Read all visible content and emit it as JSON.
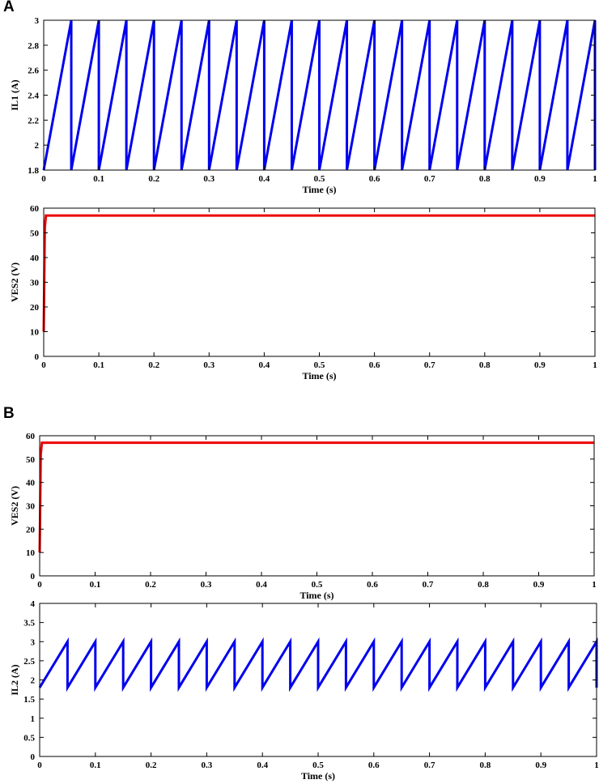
{
  "panels": {
    "a": {
      "label": "A"
    },
    "b": {
      "label": "B"
    }
  },
  "chart_data": [
    {
      "id": "A-top",
      "type": "line",
      "xlabel": "Time (s)",
      "ylabel": "IL1 (A)",
      "xlim": [
        0,
        1
      ],
      "ylim": [
        1.8,
        3
      ],
      "xticks": [
        0,
        0.1,
        0.2,
        0.3,
        0.4,
        0.5,
        0.6,
        0.7,
        0.8,
        0.9,
        1
      ],
      "xtick_labels": [
        "0",
        "0.1",
        "0.2",
        "0.3",
        "0.4",
        "0.5",
        "0.6",
        "0.7",
        "0.8",
        "0.9",
        "1"
      ],
      "yticks": [
        1.8,
        2,
        2.2,
        2.4,
        2.6,
        2.8,
        3
      ],
      "ytick_labels": [
        "1.8",
        "2",
        "2.2",
        "2.4",
        "2.6",
        "2.8",
        "3"
      ],
      "grid": false,
      "series": [
        {
          "color": "#0000ee",
          "x": [
            0,
            0.05,
            0.05,
            0.1,
            0.1,
            0.15,
            0.15,
            0.2,
            0.2,
            0.25,
            0.25,
            0.3,
            0.3,
            0.35,
            0.35,
            0.4,
            0.4,
            0.45,
            0.45,
            0.5,
            0.5,
            0.55,
            0.55,
            0.6,
            0.6,
            0.65,
            0.65,
            0.7,
            0.7,
            0.75,
            0.75,
            0.8,
            0.8,
            0.85,
            0.85,
            0.9,
            0.9,
            0.95,
            0.95,
            1,
            1
          ],
          "y": [
            1.8,
            3,
            1.8,
            3,
            1.8,
            3,
            1.8,
            3,
            1.8,
            3,
            1.8,
            3,
            1.8,
            3,
            1.8,
            3,
            1.8,
            3,
            1.8,
            3,
            1.8,
            3,
            1.8,
            3,
            1.8,
            3,
            1.8,
            3,
            1.8,
            3,
            1.8,
            3,
            1.8,
            3,
            1.8,
            3,
            1.8,
            3,
            1.8,
            3,
            1.8
          ]
        }
      ]
    },
    {
      "id": "A-bottom",
      "type": "line",
      "xlabel": "Time (s)",
      "ylabel": "VES2 (V)",
      "xlim": [
        0,
        1
      ],
      "ylim": [
        0,
        60
      ],
      "xticks": [
        0,
        0.1,
        0.2,
        0.3,
        0.4,
        0.5,
        0.6,
        0.7,
        0.8,
        0.9,
        1
      ],
      "xtick_labels": [
        "0",
        "0.1",
        "0.2",
        "0.3",
        "0.4",
        "0.5",
        "0.6",
        "0.7",
        "0.8",
        "0.9",
        "1"
      ],
      "yticks": [
        0,
        10,
        20,
        30,
        40,
        50,
        60
      ],
      "ytick_labels": [
        "0",
        "10",
        "20",
        "30",
        "40",
        "50",
        "60"
      ],
      "grid": false,
      "series": [
        {
          "color": "#ee0000",
          "x": [
            0,
            0.001,
            0.002,
            0.004,
            1
          ],
          "y": [
            10,
            30,
            52,
            57,
            57
          ]
        }
      ]
    },
    {
      "id": "B-top",
      "type": "line",
      "xlabel": "Time (s)",
      "ylabel": "VES2 (V)",
      "xlim": [
        0,
        1
      ],
      "ylim": [
        0,
        60
      ],
      "xticks": [
        0,
        0.1,
        0.2,
        0.3,
        0.4,
        0.5,
        0.6,
        0.7,
        0.8,
        0.9,
        1
      ],
      "xtick_labels": [
        "0",
        "0.1",
        "0.2",
        "0.3",
        "0.4",
        "0.5",
        "0.6",
        "0.7",
        "0.8",
        "0.9",
        "1"
      ],
      "yticks": [
        0,
        10,
        20,
        30,
        40,
        50,
        60
      ],
      "ytick_labels": [
        "0",
        "10",
        "20",
        "30",
        "40",
        "50",
        "60"
      ],
      "grid": false,
      "series": [
        {
          "color": "#ee0000",
          "x": [
            0,
            0.001,
            0.002,
            0.004,
            1
          ],
          "y": [
            10,
            30,
            52,
            57,
            57
          ]
        }
      ]
    },
    {
      "id": "B-bottom",
      "type": "line",
      "xlabel": "Time (s)",
      "ylabel": "IL2 (A)",
      "xlim": [
        0,
        1
      ],
      "ylim": [
        0,
        4
      ],
      "xticks": [
        0,
        0.1,
        0.2,
        0.3,
        0.4,
        0.5,
        0.6,
        0.7,
        0.8,
        0.9,
        1
      ],
      "xtick_labels": [
        "0",
        "0.1",
        "0.2",
        "0.3",
        "0.4",
        "0.5",
        "0.6",
        "0.7",
        "0.8",
        "0.9",
        "1"
      ],
      "yticks": [
        0,
        0.5,
        1,
        1.5,
        2,
        2.5,
        3,
        3.5,
        4
      ],
      "ytick_labels": [
        "0",
        "0.5",
        "1",
        "1.5",
        "2",
        "2.5",
        "3",
        "3.5",
        "4"
      ],
      "grid": false,
      "series": [
        {
          "color": "#0000ee",
          "x": [
            0,
            0.05,
            0.05,
            0.1,
            0.1,
            0.15,
            0.15,
            0.2,
            0.2,
            0.25,
            0.25,
            0.3,
            0.3,
            0.35,
            0.35,
            0.4,
            0.4,
            0.45,
            0.45,
            0.5,
            0.5,
            0.55,
            0.55,
            0.6,
            0.6,
            0.65,
            0.65,
            0.7,
            0.7,
            0.75,
            0.75,
            0.8,
            0.8,
            0.85,
            0.85,
            0.9,
            0.9,
            0.95,
            0.95,
            1,
            1
          ],
          "y": [
            1.8,
            3,
            1.8,
            3,
            1.8,
            3,
            1.8,
            3,
            1.8,
            3,
            1.8,
            3,
            1.8,
            3,
            1.8,
            3,
            1.8,
            3,
            1.8,
            3,
            1.8,
            3,
            1.8,
            3,
            1.8,
            3,
            1.8,
            3,
            1.8,
            3,
            1.8,
            3,
            1.8,
            3,
            1.8,
            3,
            1.8,
            3,
            1.8,
            3,
            1.8
          ]
        }
      ]
    }
  ]
}
